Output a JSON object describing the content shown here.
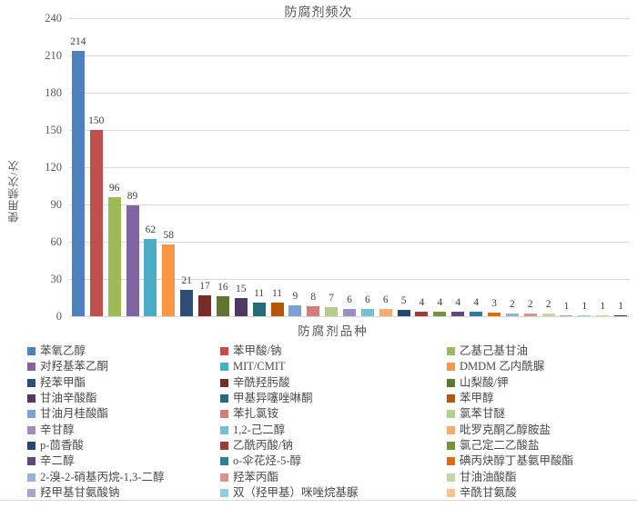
{
  "chart": {
    "title": "防腐剂频次",
    "y_axis_title": "使用频次/次",
    "x_axis_title": "防腐剂品种"
  },
  "chart_data": {
    "type": "bar",
    "title": "防腐剂频次",
    "xlabel": "防腐剂品种",
    "ylabel": "使用频次/次",
    "ylim": [
      0,
      240
    ],
    "ytick_step": 30,
    "grid": true,
    "data_labels": true,
    "legend_position": "bottom, 3 columns, row-major order",
    "note": "31st bar (value 1, dark navy) is visible but its legend entry is cut off at the bottom of the screenshot",
    "series": [
      {
        "name": "苯氧乙醇",
        "value": 214,
        "color": "#4F81BD"
      },
      {
        "name": "苯甲酸/钠",
        "value": 150,
        "color": "#C0504D"
      },
      {
        "name": "乙基己基甘油",
        "value": 96,
        "color": "#9BBB59"
      },
      {
        "name": "对羟基苯乙酮",
        "value": 89,
        "color": "#8064A2"
      },
      {
        "name": "MIT/CMIT",
        "value": 62,
        "color": "#4BACC6"
      },
      {
        "name": "DMDM 乙内酰脲",
        "value": 58,
        "color": "#F79646"
      },
      {
        "name": "羟苯甲酯",
        "value": 21,
        "color": "#2C4D75"
      },
      {
        "name": "辛酰羟肟酸",
        "value": 17,
        "color": "#772C2A"
      },
      {
        "name": "山梨酸/钾",
        "value": 16,
        "color": "#5F7530"
      },
      {
        "name": "甘油辛酸酯",
        "value": 15,
        "color": "#4D3B62"
      },
      {
        "name": "甲基异噻唑啉酮",
        "value": 11,
        "color": "#276A7C"
      },
      {
        "name": "苯甲醇",
        "value": 11,
        "color": "#B65708"
      },
      {
        "name": "甘油月桂酸酯",
        "value": 9,
        "color": "#7BA2D4"
      },
      {
        "name": "苯扎氯铵",
        "value": 8,
        "color": "#D47E7B"
      },
      {
        "name": "氯苯甘醚",
        "value": 7,
        "color": "#B5CE8C"
      },
      {
        "name": "辛甘醇",
        "value": 6,
        "color": "#9D8EC0"
      },
      {
        "name": "1,2-己二醇",
        "value": 6,
        "color": "#74BFD3"
      },
      {
        "name": "吡罗克酮乙醇胺盐",
        "value": 6,
        "color": "#F7AC72"
      },
      {
        "name": "p-茴香酸",
        "value": 5,
        "color": "#25466E"
      },
      {
        "name": "乙酰丙酸/钠",
        "value": 4,
        "color": "#9E3B38"
      },
      {
        "name": "氯己定二乙酸盐",
        "value": 4,
        "color": "#76923C"
      },
      {
        "name": "辛二醇",
        "value": 4,
        "color": "#604878"
      },
      {
        "name": "o-伞花烃-5-醇",
        "value": 4,
        "color": "#2E7E96"
      },
      {
        "name": "碘丙炔醇丁基氨甲酸酯",
        "value": 3,
        "color": "#DE6D10"
      },
      {
        "name": "2-溴-2-硝基丙烷-1,3-二醇",
        "value": 2,
        "color": "#95B3D7"
      },
      {
        "name": "羟苯丙酯",
        "value": 2,
        "color": "#DC9390"
      },
      {
        "name": "甘油油酸酯",
        "value": 2,
        "color": "#C5D6A1"
      },
      {
        "name": "羟甲基甘氨酸钠",
        "value": 1,
        "color": "#ABA3C9"
      },
      {
        "name": "双（羟甲基）咪唑烷基脲",
        "value": 1,
        "color": "#8FD0DC"
      },
      {
        "name": "辛酰甘氨酸",
        "value": 1,
        "color": "#FBC193"
      },
      {
        "name": "",
        "value": 1,
        "color": "#17375E"
      }
    ]
  }
}
